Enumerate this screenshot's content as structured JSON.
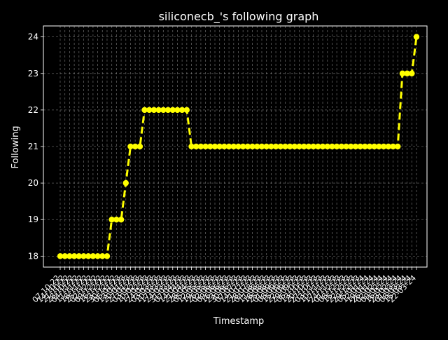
{
  "chart_data": {
    "type": "line",
    "title": "siliconecb_'s following graph",
    "xlabel": "Timestamp",
    "ylabel": "Following",
    "ylim": [
      17.7,
      24.3
    ],
    "yticks": [
      18,
      19,
      20,
      21,
      22,
      23,
      24
    ],
    "grid": true,
    "legend": "none",
    "colors": {
      "background": "#000000",
      "line": "#ffff00",
      "grid": "#b0b0b0",
      "axes": "#ffffff",
      "text": "#ffffff"
    },
    "x": [
      "07-10-22",
      "14-10-22",
      "21-10-22",
      "28-10-22",
      "04-11-22",
      "11-11-22",
      "18-11-22",
      "25-11-22",
      "02-12-22",
      "09-12-22",
      "16-12-22",
      "23-12-22",
      "30-12-22",
      "06-01-23",
      "13-01-23",
      "20-01-23",
      "27-01-23",
      "03-02-23",
      "10-02-23",
      "17-02-23",
      "24-02-23",
      "03-03-23",
      "10-03-23",
      "17-03-23",
      "24-03-23",
      "31-03-23",
      "07-04-23",
      "14-04-23",
      "21-04-23",
      "28-04-23",
      "05-05-23",
      "12-05-23",
      "19-05-23",
      "26-05-23",
      "02-06-23",
      "09-06-23",
      "16-06-23",
      "23-06-23",
      "30-06-23",
      "07-07-23",
      "14-07-23",
      "21-07-23",
      "28-07-23",
      "04-08-23",
      "11-08-23",
      "18-08-23",
      "25-08-23",
      "01-09-23",
      "08-09-23",
      "15-09-23",
      "22-09-23",
      "29-09-23",
      "06-10-23",
      "13-10-23",
      "20-10-23",
      "27-10-23",
      "03-11-23",
      "10-11-23",
      "17-11-23",
      "24-11-23",
      "01-12-23",
      "08-12-23",
      "15-12-23",
      "22-12-23",
      "29-12-23",
      "05-01-24",
      "12-01-24",
      "19-01-24",
      "26-01-24",
      "02-02-24",
      "09-02-24",
      "16-02-24",
      "23-02-24",
      "01-03-24",
      "08-03-24",
      "15-03-24",
      "22-03-24"
    ],
    "series": [
      {
        "values": [
          18,
          18,
          18,
          18,
          18,
          18,
          18,
          18,
          18,
          18,
          18,
          19,
          19,
          19,
          20,
          21,
          21,
          21,
          22,
          22,
          22,
          22,
          22,
          22,
          22,
          22,
          22,
          22,
          21,
          21,
          21,
          21,
          21,
          21,
          21,
          21,
          21,
          21,
          21,
          21,
          21,
          21,
          21,
          21,
          21,
          21,
          21,
          21,
          21,
          21,
          21,
          21,
          21,
          21,
          21,
          21,
          21,
          21,
          21,
          21,
          21,
          21,
          21,
          21,
          21,
          21,
          21,
          21,
          21,
          21,
          21,
          21,
          21,
          23,
          23,
          23,
          24
        ]
      }
    ]
  }
}
